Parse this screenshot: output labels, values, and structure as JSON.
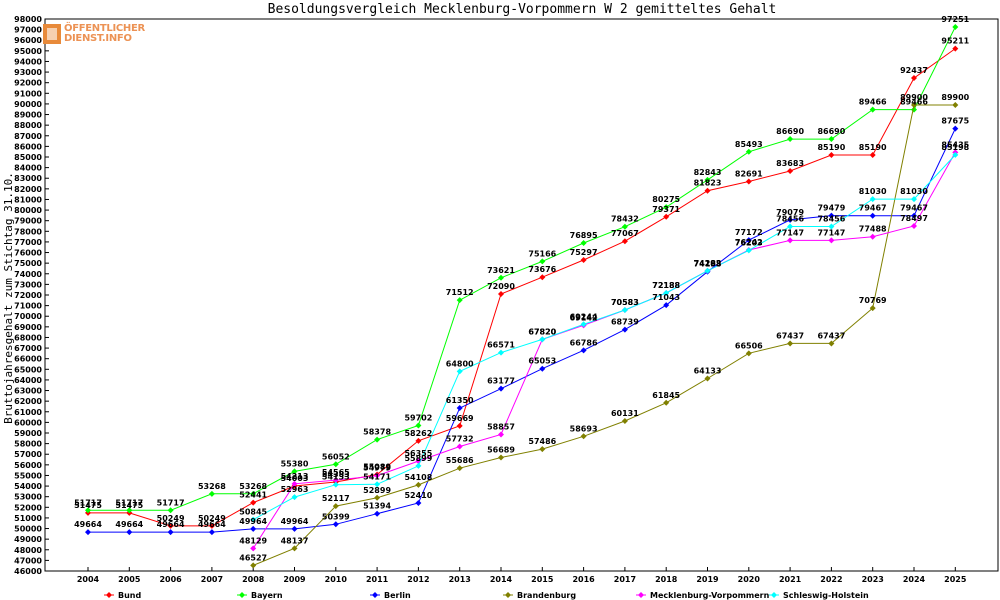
{
  "chart_data": {
    "type": "line",
    "title": "Besoldungsvergleich Mecklenburg-Vorpommern W 2 gemitteltes Gehalt",
    "xlabel": "",
    "ylabel": "Bruttojahresgehalt zum Stichtag 31.10.",
    "ylim": [
      46000,
      98000
    ],
    "ystep": 1000,
    "categories": [
      "2004",
      "2005",
      "2006",
      "2007",
      "2008",
      "2009",
      "2010",
      "2011",
      "2012",
      "2013",
      "2014",
      "2015",
      "2016",
      "2017",
      "2018",
      "2019",
      "2020",
      "2021",
      "2022",
      "2023",
      "2024",
      "2025"
    ],
    "series": [
      {
        "name": "Bund",
        "color": "#ff0000",
        "values": [
          51475,
          51475,
          50249,
          50249,
          52441,
          54003,
          54383,
          55089,
          58262,
          59669,
          72090,
          73676,
          75297,
          77067,
          79371,
          81823,
          82691,
          83683,
          85190,
          85190,
          92437,
          95211
        ]
      },
      {
        "name": "Bayern",
        "color": "#00ff00",
        "values": [
          51717,
          51717,
          51717,
          53268,
          53268,
          55380,
          56052,
          58378,
          59702,
          71512,
          73621,
          75166,
          76895,
          78432,
          80275,
          82843,
          85493,
          86690,
          86690,
          89466,
          89466,
          97251
        ]
      },
      {
        "name": "Berlin",
        "color": "#0000ff",
        "values": [
          49664,
          49664,
          49664,
          49664,
          49964,
          49964,
          50399,
          51394,
          52410,
          61350,
          63177,
          65053,
          66786,
          68739,
          71043,
          74198,
          77172,
          79079,
          79479,
          79467,
          79467,
          87675
        ]
      },
      {
        "name": "Brandenburg",
        "color": "#808000",
        "values": [
          null,
          null,
          null,
          null,
          46527,
          48137,
          52117,
          52899,
          54108,
          55686,
          56689,
          57486,
          58693,
          60131,
          61845,
          64133,
          66506,
          67437,
          67437,
          70769,
          89900,
          89900
        ]
      },
      {
        "name": "Mecklenburg-Vorpommern",
        "color": "#ff00ff",
        "values": [
          null,
          null,
          null,
          null,
          48129,
          54213,
          54565,
          54979,
          56355,
          57732,
          58857,
          67820,
          69142,
          70583,
          72188,
          74283,
          76242,
          77147,
          77147,
          77488,
          78497,
          85435
        ]
      },
      {
        "name": "Schleswig-Holstein",
        "color": "#00ffff",
        "values": [
          null,
          null,
          null,
          null,
          50845,
          52963,
          54133,
          54171,
          55899,
          64800,
          66571,
          67820,
          69244,
          70583,
          72188,
          74283,
          76203,
          78456,
          78456,
          81030,
          81030,
          85198
        ]
      }
    ]
  },
  "logo": {
    "line1": "ÖFFENTLICHER",
    "line2": "DIENST.INFO"
  }
}
